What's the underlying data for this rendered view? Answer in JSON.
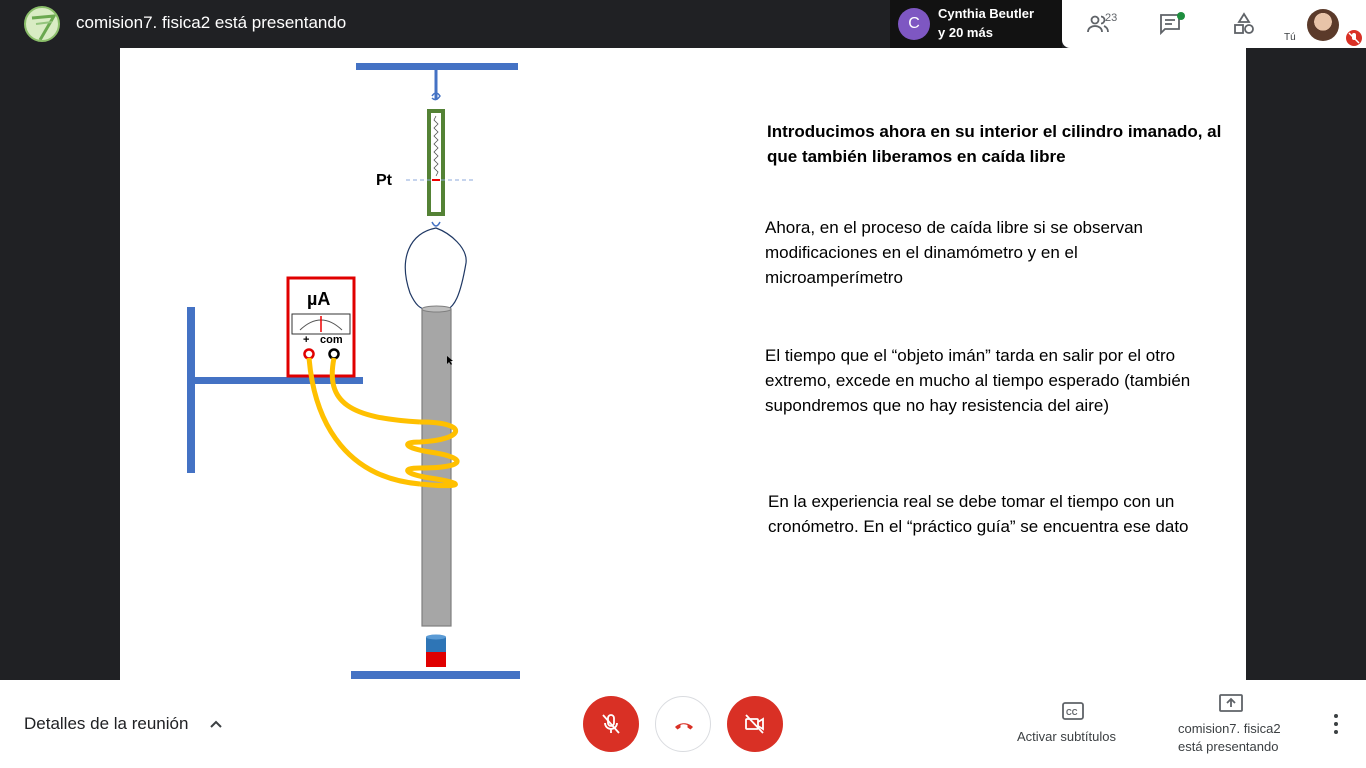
{
  "topbar": {
    "presenter_title": "comision7. fisica2 está presentando",
    "participant_name": "Cynthia Beutler",
    "participant_more": "y 20 más",
    "participant_initial": "C",
    "people_count": "23",
    "self_label": "Tú"
  },
  "slide": {
    "label_pt": "Pt",
    "label_ua": "µA",
    "label_plus": "+",
    "label_com": "com",
    "heading": "Introducimos ahora en su interior el cilindro imanado, al que también liberamos en caída libre",
    "paragraph1": "Ahora, en el proceso de caída libre si se observan modificaciones en el dinamómetro y en el microamperímetro",
    "paragraph2": "El tiempo que el “objeto imán” tarda en salir por el otro extremo, excede en mucho al tiempo esperado (también supondremos que no hay resistencia del aire)",
    "paragraph3": "En la experiencia real se debe tomar el tiempo con un cronómetro. En el “práctico guía” se encuentra ese dato"
  },
  "bottombar": {
    "meeting_details": "Detalles de la reunión",
    "captions_label": "Activar subtítulos",
    "present_label": "comision7. fisica2 está presentando"
  },
  "colors": {
    "accent_red": "#d93025",
    "stand_blue": "#4472c4",
    "coil_yellow": "#ffc000",
    "spring_green": "#548235"
  }
}
